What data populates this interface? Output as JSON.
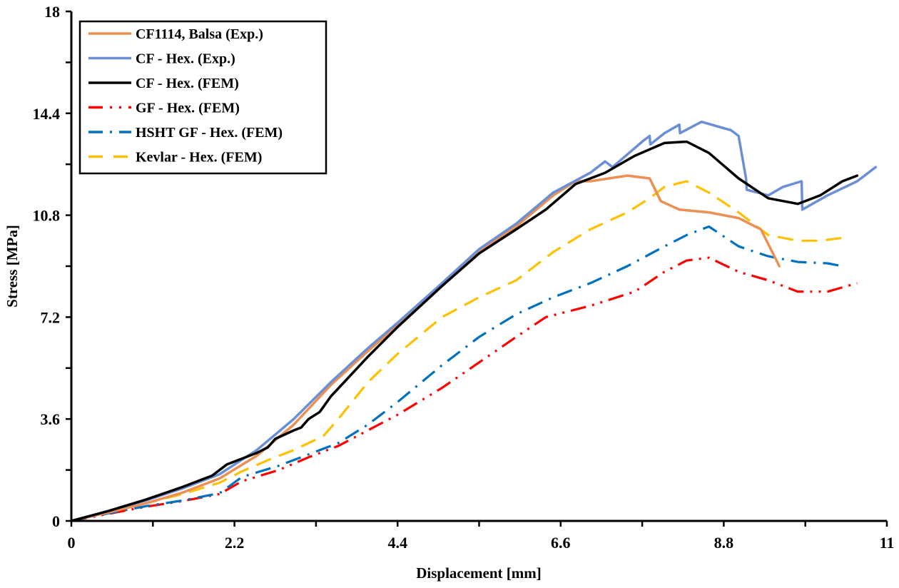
{
  "chart_data": {
    "type": "line",
    "title": "",
    "xlabel": "Displacement [mm]",
    "ylabel": "Stress [MPa]",
    "xlim": [
      0,
      11
    ],
    "ylim": [
      0,
      18
    ],
    "xticks": [
      "0",
      "2.2",
      "4.4",
      "6.6",
      "8.8",
      "11"
    ],
    "yticks": [
      "0",
      "3.6",
      "7.2",
      "10.8",
      "14.4",
      "18"
    ],
    "grid": false,
    "legend_position": "top-left",
    "series": [
      {
        "name": "CF1114, Balsa (Exp.)",
        "color": "#ED8F52",
        "style": "solid",
        "points": [
          [
            0,
            0
          ],
          [
            0.5,
            0.3
          ],
          [
            1.0,
            0.62
          ],
          [
            1.5,
            1.0
          ],
          [
            2.0,
            1.5
          ],
          [
            2.5,
            2.3
          ],
          [
            3.0,
            3.4
          ],
          [
            3.5,
            4.8
          ],
          [
            4.0,
            6.0
          ],
          [
            4.4,
            6.9
          ],
          [
            5.0,
            8.3
          ],
          [
            5.5,
            9.5
          ],
          [
            6.0,
            10.4
          ],
          [
            6.5,
            11.5
          ],
          [
            6.8,
            12.0
          ],
          [
            7.0,
            12.0
          ],
          [
            7.5,
            12.2
          ],
          [
            7.8,
            12.1
          ],
          [
            7.95,
            11.3
          ],
          [
            8.2,
            11.0
          ],
          [
            8.6,
            10.9
          ],
          [
            9.0,
            10.7
          ],
          [
            9.3,
            10.3
          ],
          [
            9.55,
            9.0
          ]
        ]
      },
      {
        "name": "CF - Hex. (Exp.)",
        "color": "#6A8FD4",
        "style": "solid",
        "points": [
          [
            0,
            0
          ],
          [
            0.5,
            0.35
          ],
          [
            1.0,
            0.72
          ],
          [
            1.5,
            1.15
          ],
          [
            2.0,
            1.65
          ],
          [
            2.5,
            2.5
          ],
          [
            3.0,
            3.6
          ],
          [
            3.5,
            4.9
          ],
          [
            4.0,
            6.1
          ],
          [
            4.4,
            7.0
          ],
          [
            5.0,
            8.4
          ],
          [
            5.5,
            9.6
          ],
          [
            6.0,
            10.5
          ],
          [
            6.5,
            11.6
          ],
          [
            7.0,
            12.3
          ],
          [
            7.2,
            12.7
          ],
          [
            7.3,
            12.5
          ],
          [
            7.7,
            13.4
          ],
          [
            7.8,
            13.6
          ],
          [
            7.81,
            13.3
          ],
          [
            8.0,
            13.7
          ],
          [
            8.2,
            14.0
          ],
          [
            8.21,
            13.7
          ],
          [
            8.5,
            14.1
          ],
          [
            8.9,
            13.8
          ],
          [
            9.0,
            13.6
          ],
          [
            9.1,
            12.1
          ],
          [
            9.11,
            11.7
          ],
          [
            9.4,
            11.5
          ],
          [
            9.6,
            11.8
          ],
          [
            9.85,
            12.0
          ],
          [
            9.86,
            11.0
          ],
          [
            10.2,
            11.5
          ],
          [
            10.6,
            12.0
          ],
          [
            10.85,
            12.5
          ]
        ]
      },
      {
        "name": "CF - Hex. (FEM)",
        "color": "#000000",
        "style": "solid",
        "points": [
          [
            0,
            0
          ],
          [
            0.5,
            0.35
          ],
          [
            1.0,
            0.75
          ],
          [
            1.5,
            1.2
          ],
          [
            1.9,
            1.6
          ],
          [
            2.1,
            2.0
          ],
          [
            2.5,
            2.4
          ],
          [
            2.65,
            2.6
          ],
          [
            2.75,
            2.9
          ],
          [
            3.0,
            3.2
          ],
          [
            3.1,
            3.3
          ],
          [
            3.2,
            3.6
          ],
          [
            3.35,
            3.85
          ],
          [
            3.5,
            4.4
          ],
          [
            4.0,
            5.8
          ],
          [
            4.4,
            6.85
          ],
          [
            5.0,
            8.3
          ],
          [
            5.5,
            9.45
          ],
          [
            6.0,
            10.3
          ],
          [
            6.4,
            11.0
          ],
          [
            6.8,
            11.9
          ],
          [
            7.2,
            12.3
          ],
          [
            7.6,
            12.9
          ],
          [
            8.0,
            13.35
          ],
          [
            8.3,
            13.4
          ],
          [
            8.6,
            13.0
          ],
          [
            9.0,
            12.1
          ],
          [
            9.4,
            11.4
          ],
          [
            9.8,
            11.2
          ],
          [
            10.1,
            11.5
          ],
          [
            10.4,
            12.0
          ],
          [
            10.6,
            12.2
          ]
        ]
      },
      {
        "name": "GF - Hex. (FEM)",
        "color": "#FF0000",
        "style": "dash-dot-dot",
        "points": [
          [
            0,
            0
          ],
          [
            0.5,
            0.25
          ],
          [
            1.0,
            0.5
          ],
          [
            1.5,
            0.7
          ],
          [
            2.0,
            0.95
          ],
          [
            2.3,
            1.4
          ],
          [
            2.8,
            1.8
          ],
          [
            3.2,
            2.25
          ],
          [
            3.6,
            2.65
          ],
          [
            4.0,
            3.2
          ],
          [
            4.4,
            3.75
          ],
          [
            5.0,
            4.7
          ],
          [
            5.5,
            5.6
          ],
          [
            6.0,
            6.5
          ],
          [
            6.4,
            7.2
          ],
          [
            7.0,
            7.6
          ],
          [
            7.6,
            8.1
          ],
          [
            8.0,
            8.8
          ],
          [
            8.3,
            9.2
          ],
          [
            8.6,
            9.3
          ],
          [
            9.0,
            8.8
          ],
          [
            9.4,
            8.5
          ],
          [
            9.8,
            8.1
          ],
          [
            10.2,
            8.1
          ],
          [
            10.6,
            8.4
          ]
        ]
      },
      {
        "name": "HSHT GF - Hex. (FEM)",
        "color": "#0070C0",
        "style": "dash-dot",
        "points": [
          [
            0,
            0
          ],
          [
            0.5,
            0.27
          ],
          [
            1.0,
            0.52
          ],
          [
            1.5,
            0.72
          ],
          [
            2.0,
            0.98
          ],
          [
            2.3,
            1.55
          ],
          [
            2.8,
            1.95
          ],
          [
            3.2,
            2.35
          ],
          [
            3.6,
            2.75
          ],
          [
            4.0,
            3.4
          ],
          [
            4.4,
            4.2
          ],
          [
            5.0,
            5.5
          ],
          [
            5.5,
            6.5
          ],
          [
            6.0,
            7.3
          ],
          [
            6.5,
            7.9
          ],
          [
            7.0,
            8.4
          ],
          [
            7.5,
            9.0
          ],
          [
            8.0,
            9.7
          ],
          [
            8.3,
            10.1
          ],
          [
            8.6,
            10.4
          ],
          [
            9.0,
            9.7
          ],
          [
            9.4,
            9.35
          ],
          [
            9.8,
            9.15
          ],
          [
            10.2,
            9.1
          ],
          [
            10.4,
            9.0
          ]
        ]
      },
      {
        "name": "Kevlar - Hex. (FEM)",
        "color": "#FFC000",
        "style": "dashed",
        "points": [
          [
            0,
            0
          ],
          [
            0.5,
            0.3
          ],
          [
            1.0,
            0.62
          ],
          [
            1.5,
            0.95
          ],
          [
            2.0,
            1.35
          ],
          [
            2.3,
            1.75
          ],
          [
            2.7,
            2.2
          ],
          [
            3.0,
            2.5
          ],
          [
            3.4,
            3.0
          ],
          [
            3.6,
            3.6
          ],
          [
            4.0,
            4.9
          ],
          [
            4.4,
            5.9
          ],
          [
            5.0,
            7.2
          ],
          [
            5.5,
            7.9
          ],
          [
            6.0,
            8.5
          ],
          [
            6.5,
            9.5
          ],
          [
            7.0,
            10.3
          ],
          [
            7.5,
            10.9
          ],
          [
            7.8,
            11.4
          ],
          [
            8.0,
            11.8
          ],
          [
            8.3,
            12.0
          ],
          [
            8.6,
            11.6
          ],
          [
            9.0,
            10.9
          ],
          [
            9.4,
            10.1
          ],
          [
            9.8,
            9.9
          ],
          [
            10.1,
            9.9
          ],
          [
            10.4,
            10.0
          ]
        ]
      }
    ]
  }
}
